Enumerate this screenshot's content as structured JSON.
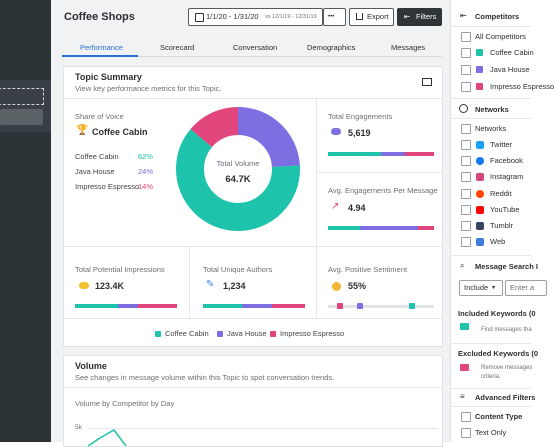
{
  "header": {
    "title": "Coffee Shops",
    "date_range": "1/1/20 - 1/31/20",
    "compare_range": "vs 12/1/19 - 12/31/19",
    "more": "•••",
    "export": "Export",
    "filters": "Filters"
  },
  "tabs": [
    "Performance",
    "Scorecard",
    "Conversation",
    "Demographics",
    "Messages"
  ],
  "topic_summary": {
    "title": "Topic Summary",
    "subtitle": "View key performance metrics for this Topic.",
    "share_of_voice": {
      "label": "Share of Voice",
      "leader": "Coffee Cabin",
      "items": [
        {
          "name": "Coffee Cabin",
          "value": 62,
          "label": "62%",
          "color": "#1dc3aa"
        },
        {
          "name": "Java House",
          "value": 24,
          "label": "24%",
          "color": "#7d6fe2"
        },
        {
          "name": "Impresso Espresso",
          "value": 14,
          "label": "14%",
          "color": "#e0467c"
        }
      ]
    },
    "donut": {
      "label": "Total Volume",
      "value": "64.7K"
    },
    "metrics": [
      {
        "label": "Total Engagements",
        "value": "5,619"
      },
      {
        "label": "Avg. Engagements Per Message",
        "value": "4.94"
      },
      {
        "label": "Total Potential Impressions",
        "value": "123.4K"
      },
      {
        "label": "Total Unique Authors",
        "value": "1,234"
      },
      {
        "label": "Avg. Positive Sentiment",
        "value": "55%"
      }
    ]
  },
  "volume": {
    "title": "Volume",
    "subtitle": "See changes in message volume within this Topic to spot conversation trends.",
    "chart_title": "Volume by Competitor by Day",
    "y_tick": "5k"
  },
  "filters": {
    "competitors": {
      "title": "Competitors",
      "all": "All Competitors"
    },
    "networks": {
      "title": "Networks",
      "all": "Networks",
      "items": [
        "Twitter",
        "Facebook",
        "Instagram",
        "Reddit",
        "YouTube",
        "Tumblr",
        "Web"
      ]
    },
    "message_search": {
      "title": "Message Search I",
      "mode": "Include",
      "placeholder": "Enter a",
      "included": {
        "title": "Included Keywords (0",
        "hint": "Find messages tha"
      },
      "excluded": {
        "title": "Excluded Keywords (0",
        "hint": [
          "Remove messages",
          "criteria."
        ]
      }
    },
    "advanced": {
      "title": "Advanced Filters",
      "content_type": "Content Type",
      "option": "Text Only"
    }
  }
}
